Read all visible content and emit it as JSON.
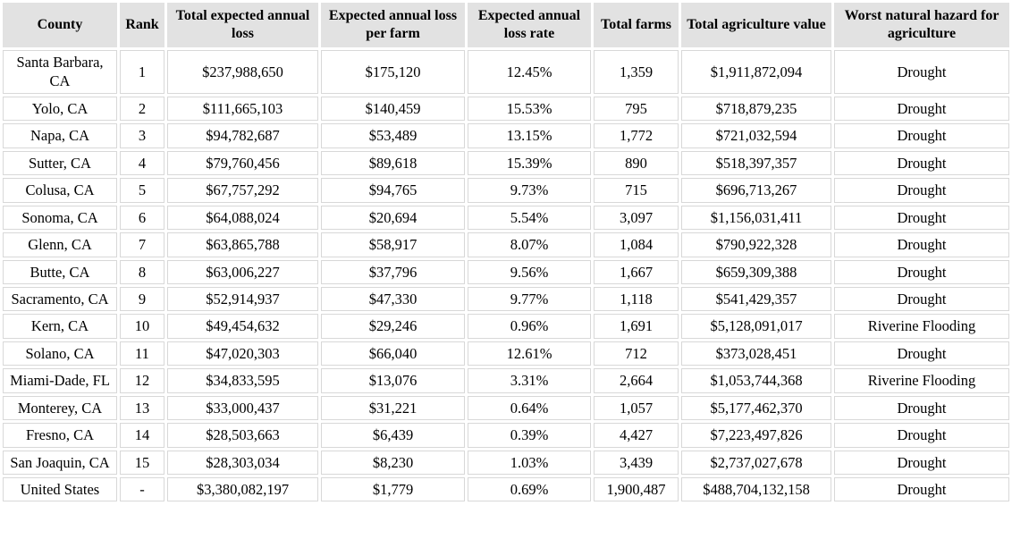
{
  "colors": {
    "header_background": "#e2e2e2",
    "cell_border": "#d8d8d8",
    "cell_background": "#ffffff",
    "text": "#000000"
  },
  "chart_data": {
    "type": "table",
    "title": "",
    "columns": [
      "County",
      "Rank",
      "Total expected annual loss",
      "Expected annual loss per farm",
      "Expected annual loss rate",
      "Total farms",
      "Total agriculture value",
      "Worst natural hazard for agriculture"
    ],
    "rows": [
      [
        "Santa Barbara, CA",
        "1",
        "$237,988,650",
        "$175,120",
        "12.45%",
        "1,359",
        "$1,911,872,094",
        "Drought"
      ],
      [
        "Yolo, CA",
        "2",
        "$111,665,103",
        "$140,459",
        "15.53%",
        "795",
        "$718,879,235",
        "Drought"
      ],
      [
        "Napa, CA",
        "3",
        "$94,782,687",
        "$53,489",
        "13.15%",
        "1,772",
        "$721,032,594",
        "Drought"
      ],
      [
        "Sutter, CA",
        "4",
        "$79,760,456",
        "$89,618",
        "15.39%",
        "890",
        "$518,397,357",
        "Drought"
      ],
      [
        "Colusa, CA",
        "5",
        "$67,757,292",
        "$94,765",
        "9.73%",
        "715",
        "$696,713,267",
        "Drought"
      ],
      [
        "Sonoma, CA",
        "6",
        "$64,088,024",
        "$20,694",
        "5.54%",
        "3,097",
        "$1,156,031,411",
        "Drought"
      ],
      [
        "Glenn, CA",
        "7",
        "$63,865,788",
        "$58,917",
        "8.07%",
        "1,084",
        "$790,922,328",
        "Drought"
      ],
      [
        "Butte, CA",
        "8",
        "$63,006,227",
        "$37,796",
        "9.56%",
        "1,667",
        "$659,309,388",
        "Drought"
      ],
      [
        "Sacramento, CA",
        "9",
        "$52,914,937",
        "$47,330",
        "9.77%",
        "1,118",
        "$541,429,357",
        "Drought"
      ],
      [
        "Kern, CA",
        "10",
        "$49,454,632",
        "$29,246",
        "0.96%",
        "1,691",
        "$5,128,091,017",
        "Riverine Flooding"
      ],
      [
        "Solano, CA",
        "11",
        "$47,020,303",
        "$66,040",
        "12.61%",
        "712",
        "$373,028,451",
        "Drought"
      ],
      [
        "Miami-Dade, FL",
        "12",
        "$34,833,595",
        "$13,076",
        "3.31%",
        "2,664",
        "$1,053,744,368",
        "Riverine Flooding"
      ],
      [
        "Monterey, CA",
        "13",
        "$33,000,437",
        "$31,221",
        "0.64%",
        "1,057",
        "$5,177,462,370",
        "Drought"
      ],
      [
        "Fresno, CA",
        "14",
        "$28,503,663",
        "$6,439",
        "0.39%",
        "4,427",
        "$7,223,497,826",
        "Drought"
      ],
      [
        "San Joaquin, CA",
        "15",
        "$28,303,034",
        "$8,230",
        "1.03%",
        "3,439",
        "$2,737,027,678",
        "Drought"
      ],
      [
        "United States",
        "-",
        "$3,380,082,197",
        "$1,779",
        "0.69%",
        "1,900,487",
        "$488,704,132,158",
        "Drought"
      ]
    ]
  }
}
